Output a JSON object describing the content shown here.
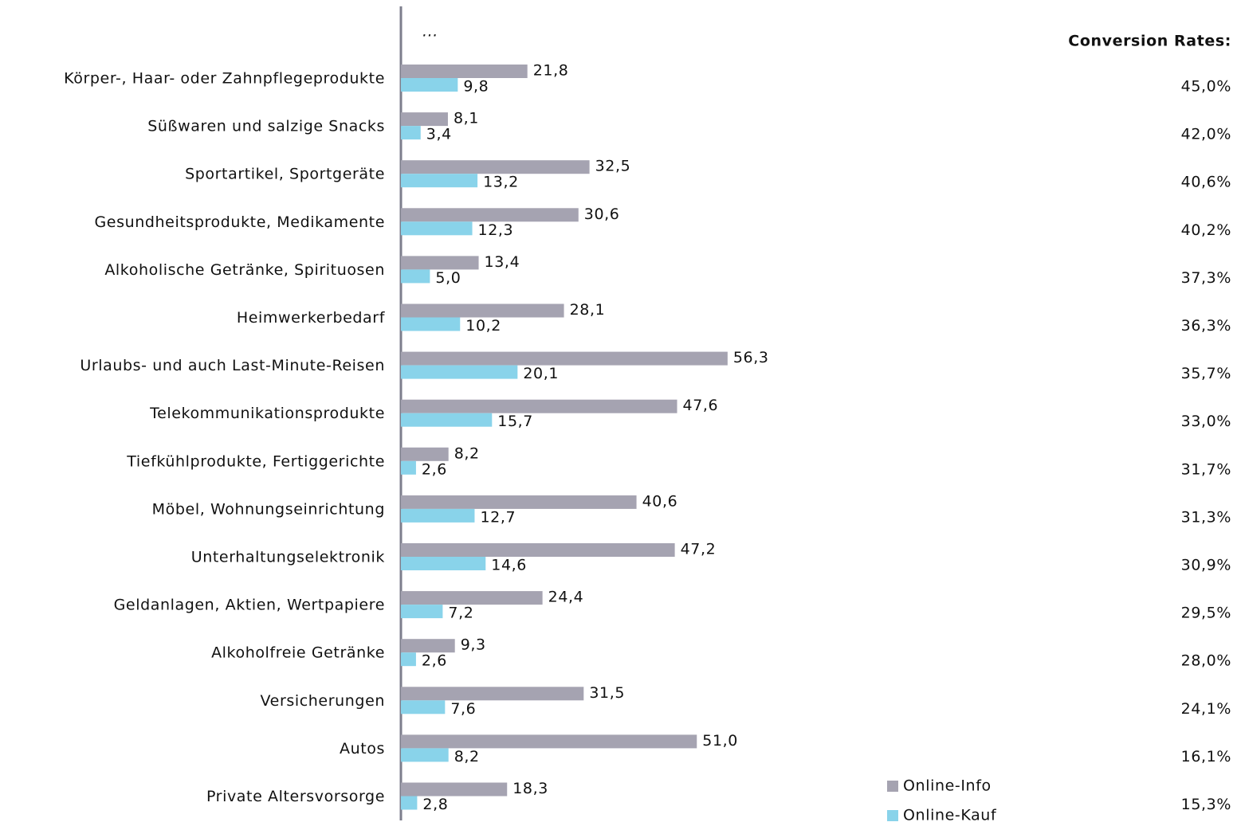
{
  "chart_data": {
    "type": "hbar",
    "annotation": "...",
    "categories": [
      "Körper-, Haar- oder Zahnpflegeprodukte",
      "Süßwaren und salzige Snacks",
      "Sportartikel, Sportgeräte",
      "Gesundheitsprodukte, Medikamente",
      "Alkoholische Getränke, Spirituosen",
      "Heimwerkerbedarf",
      "Urlaubs- und auch Last-Minute-Reisen",
      "Telekommunikationsprodukte",
      "Tiefkühlprodukte, Fertiggerichte",
      "Möbel, Wohnungseinrichtung",
      "Unterhaltungselektronik",
      "Geldanlagen, Aktien, Wertpapiere",
      "Alkoholfreie Getränke",
      "Versicherungen",
      "Autos",
      "Private Altersvorsorge"
    ],
    "series": [
      {
        "name": "Online-Info",
        "color": "#a5a3b1",
        "values": [
          21.8,
          8.1,
          32.5,
          30.6,
          13.4,
          28.1,
          56.3,
          47.6,
          8.2,
          40.6,
          47.2,
          24.4,
          9.3,
          31.5,
          51.0,
          18.3
        ],
        "value_labels": [
          "21,8",
          "8,1",
          "32,5",
          "30,6",
          "13,4",
          "28,1",
          "56,3",
          "47,6",
          "8,2",
          "40,6",
          "47,2",
          "24,4",
          "9,3",
          "31,5",
          "51,0",
          "18,3"
        ]
      },
      {
        "name": "Online-Kauf",
        "color": "#89d3ea",
        "values": [
          9.8,
          3.4,
          13.2,
          12.3,
          5.0,
          10.2,
          20.1,
          15.7,
          2.6,
          12.7,
          14.6,
          7.2,
          2.6,
          7.6,
          8.2,
          2.8
        ],
        "value_labels": [
          "9,8",
          "3,4",
          "13,2",
          "12,3",
          "5,0",
          "10,2",
          "20,1",
          "15,7",
          "2,6",
          "12,7",
          "14,6",
          "7,2",
          "2,6",
          "7,6",
          "8,2",
          "2,8"
        ]
      }
    ],
    "xlim": [
      0,
      100
    ],
    "conversion_rates": {
      "title": "Conversion Rates:",
      "values": [
        45.0,
        42.0,
        40.6,
        40.2,
        37.3,
        36.3,
        35.7,
        33.0,
        31.7,
        31.3,
        30.9,
        29.5,
        28.0,
        24.1,
        16.1,
        15.3
      ],
      "value_labels": [
        "45,0%",
        "42,0%",
        "40,6%",
        "40,2%",
        "37,3%",
        "36,3%",
        "35,7%",
        "33,0%",
        "31,7%",
        "31,3%",
        "30,9%",
        "29,5%",
        "28,0%",
        "24,1%",
        "16,1%",
        "15,3%"
      ]
    }
  }
}
